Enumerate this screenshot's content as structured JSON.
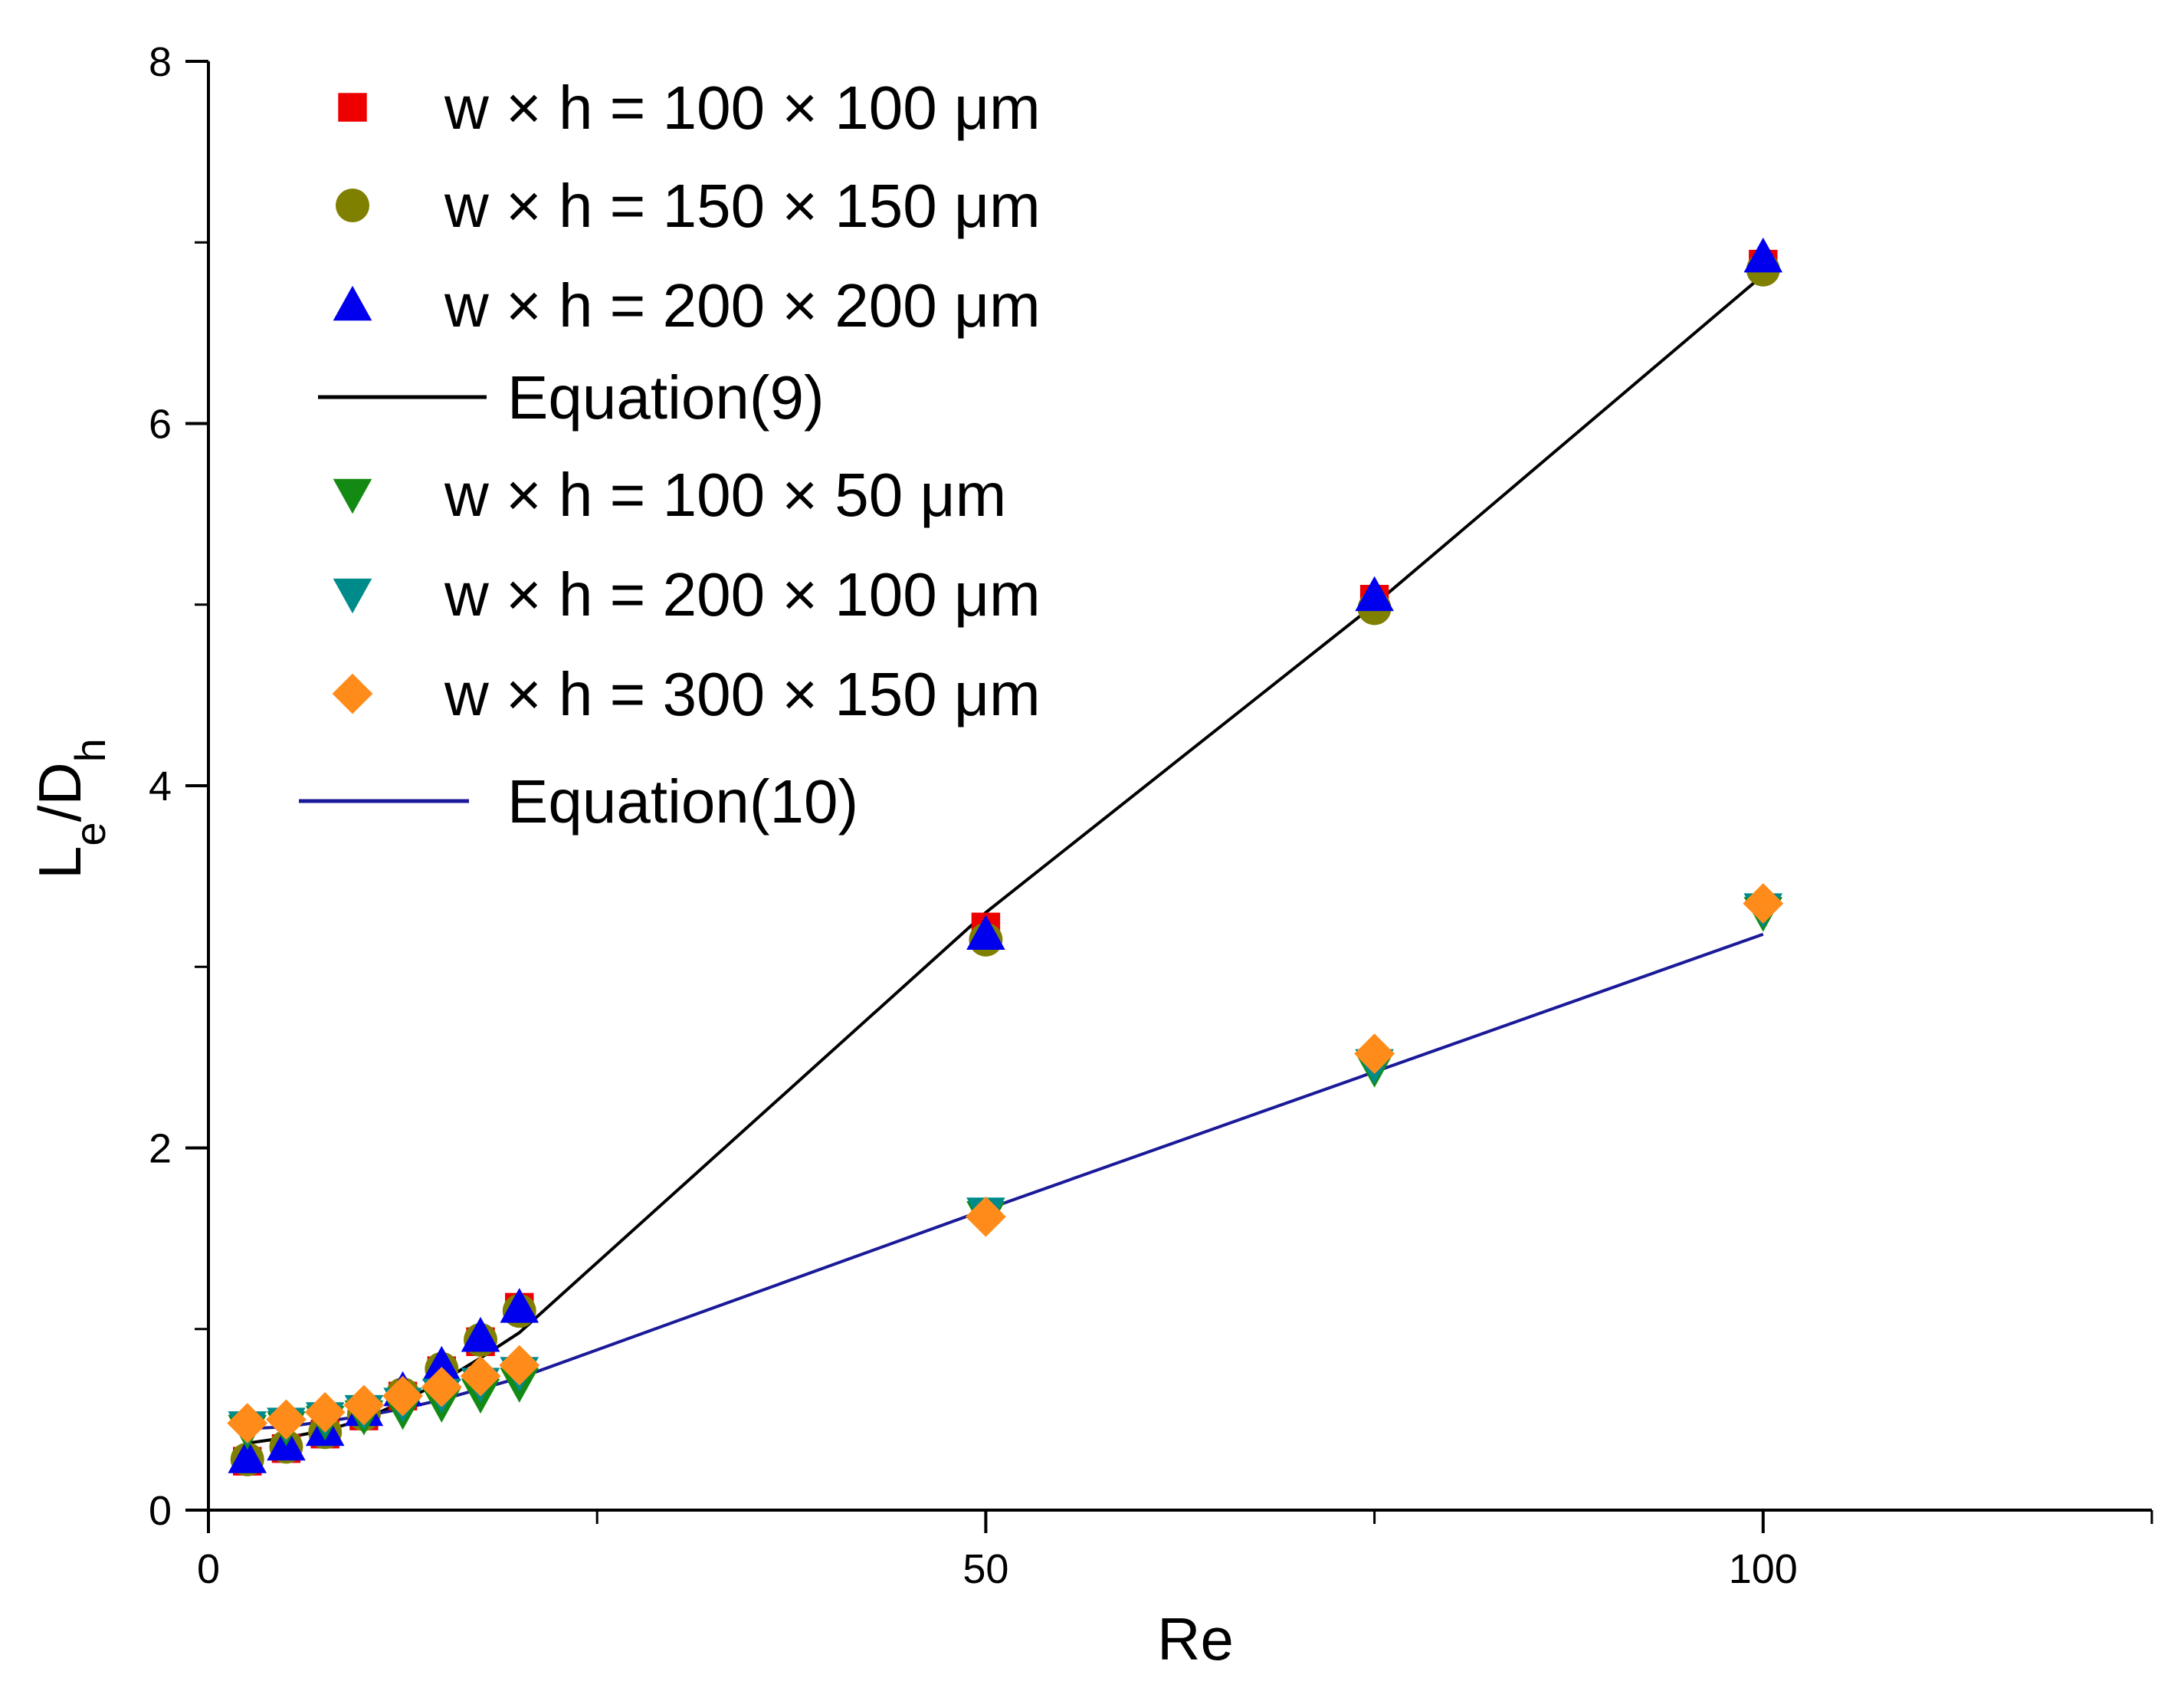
{
  "chart_data": {
    "type": "scatter",
    "title": "",
    "xlabel": "Re",
    "ylabel": {
      "main": "L",
      "sub1": "e",
      "sep": "/D",
      "sub2": "h"
    },
    "xlim": [
      0,
      125
    ],
    "ylim": [
      0,
      8
    ],
    "x_ticks": [
      {
        "value": 0,
        "label": "0"
      },
      {
        "value": 50,
        "label": "50"
      },
      {
        "value": 100,
        "label": "100"
      }
    ],
    "y_ticks": [
      {
        "value": 0,
        "label": "0"
      },
      {
        "value": 2,
        "label": "2"
      },
      {
        "value": 4,
        "label": "4"
      },
      {
        "value": 6,
        "label": "6"
      },
      {
        "value": 8,
        "label": "8"
      }
    ],
    "grid": false,
    "legend_position": "top-left",
    "series": [
      {
        "name": "w × h = 100 × 100 μm",
        "kind": "scatter",
        "marker": "square",
        "color": "#ee0000",
        "x": [
          2.5,
          5,
          7.5,
          10,
          12.5,
          15,
          17.5,
          20,
          50,
          75,
          100
        ],
        "y": [
          0.27,
          0.34,
          0.42,
          0.52,
          0.63,
          0.77,
          0.93,
          1.12,
          3.22,
          5.03,
          6.88
        ]
      },
      {
        "name": "w × h = 150 × 150 μm",
        "kind": "scatter",
        "marker": "circle",
        "color": "#808000",
        "x": [
          2.5,
          5,
          7.5,
          10,
          12.5,
          15,
          17.5,
          20,
          50,
          75,
          100
        ],
        "y": [
          0.28,
          0.35,
          0.43,
          0.53,
          0.64,
          0.78,
          0.94,
          1.1,
          3.15,
          4.98,
          6.85
        ]
      },
      {
        "name": "w × h = 200 × 200 μm",
        "kind": "scatter",
        "marker": "triangle-up",
        "color": "#0000ee",
        "x": [
          2.5,
          5,
          7.5,
          10,
          12.5,
          15,
          17.5,
          20,
          50,
          75,
          100
        ],
        "y": [
          0.29,
          0.36,
          0.44,
          0.55,
          0.66,
          0.8,
          0.96,
          1.12,
          3.18,
          5.05,
          6.92
        ]
      },
      {
        "name": "Equation(9)",
        "kind": "line",
        "color": "#000000",
        "x": [
          2.5,
          5,
          7.5,
          10,
          12.5,
          15,
          17.5,
          20,
          50,
          75,
          100
        ],
        "y": [
          0.37,
          0.4,
          0.44,
          0.5,
          0.6,
          0.71,
          0.84,
          0.98,
          3.3,
          5.0,
          6.82
        ]
      },
      {
        "name": "w × h = 100 × 50 μm",
        "kind": "scatter",
        "marker": "triangle-down",
        "color": "#138a13",
        "x": [
          2.5,
          5,
          7.5,
          10,
          12.5,
          15,
          17.5,
          20,
          50,
          75,
          100
        ],
        "y": [
          0.44,
          0.46,
          0.49,
          0.52,
          0.55,
          0.59,
          0.64,
          0.7,
          1.62,
          2.44,
          3.3
        ]
      },
      {
        "name": "w × h = 200 × 100 μm",
        "kind": "scatter",
        "marker": "triangle-down",
        "color": "#008b8b",
        "x": [
          2.5,
          5,
          7.5,
          10,
          12.5,
          15,
          17.5,
          20,
          50,
          75,
          100
        ],
        "y": [
          0.46,
          0.48,
          0.51,
          0.55,
          0.59,
          0.64,
          0.7,
          0.76,
          1.64,
          2.46,
          3.32
        ]
      },
      {
        "name": "w × h = 300 × 150 μm",
        "kind": "scatter",
        "marker": "diamond",
        "color": "#ff8c1a",
        "x": [
          2.5,
          5,
          7.5,
          10,
          12.5,
          15,
          17.5,
          20,
          50,
          75,
          100
        ],
        "y": [
          0.48,
          0.5,
          0.54,
          0.58,
          0.63,
          0.68,
          0.74,
          0.8,
          1.62,
          2.52,
          3.35
        ]
      },
      {
        "name": "Equation(10)",
        "kind": "line",
        "color": "#1a1a99",
        "x": [
          2.5,
          5,
          7.5,
          10,
          12.5,
          15,
          17.5,
          20,
          50,
          75,
          100
        ],
        "y": [
          0.45,
          0.46,
          0.49,
          0.52,
          0.56,
          0.61,
          0.67,
          0.73,
          1.66,
          2.42,
          3.18
        ]
      }
    ]
  }
}
